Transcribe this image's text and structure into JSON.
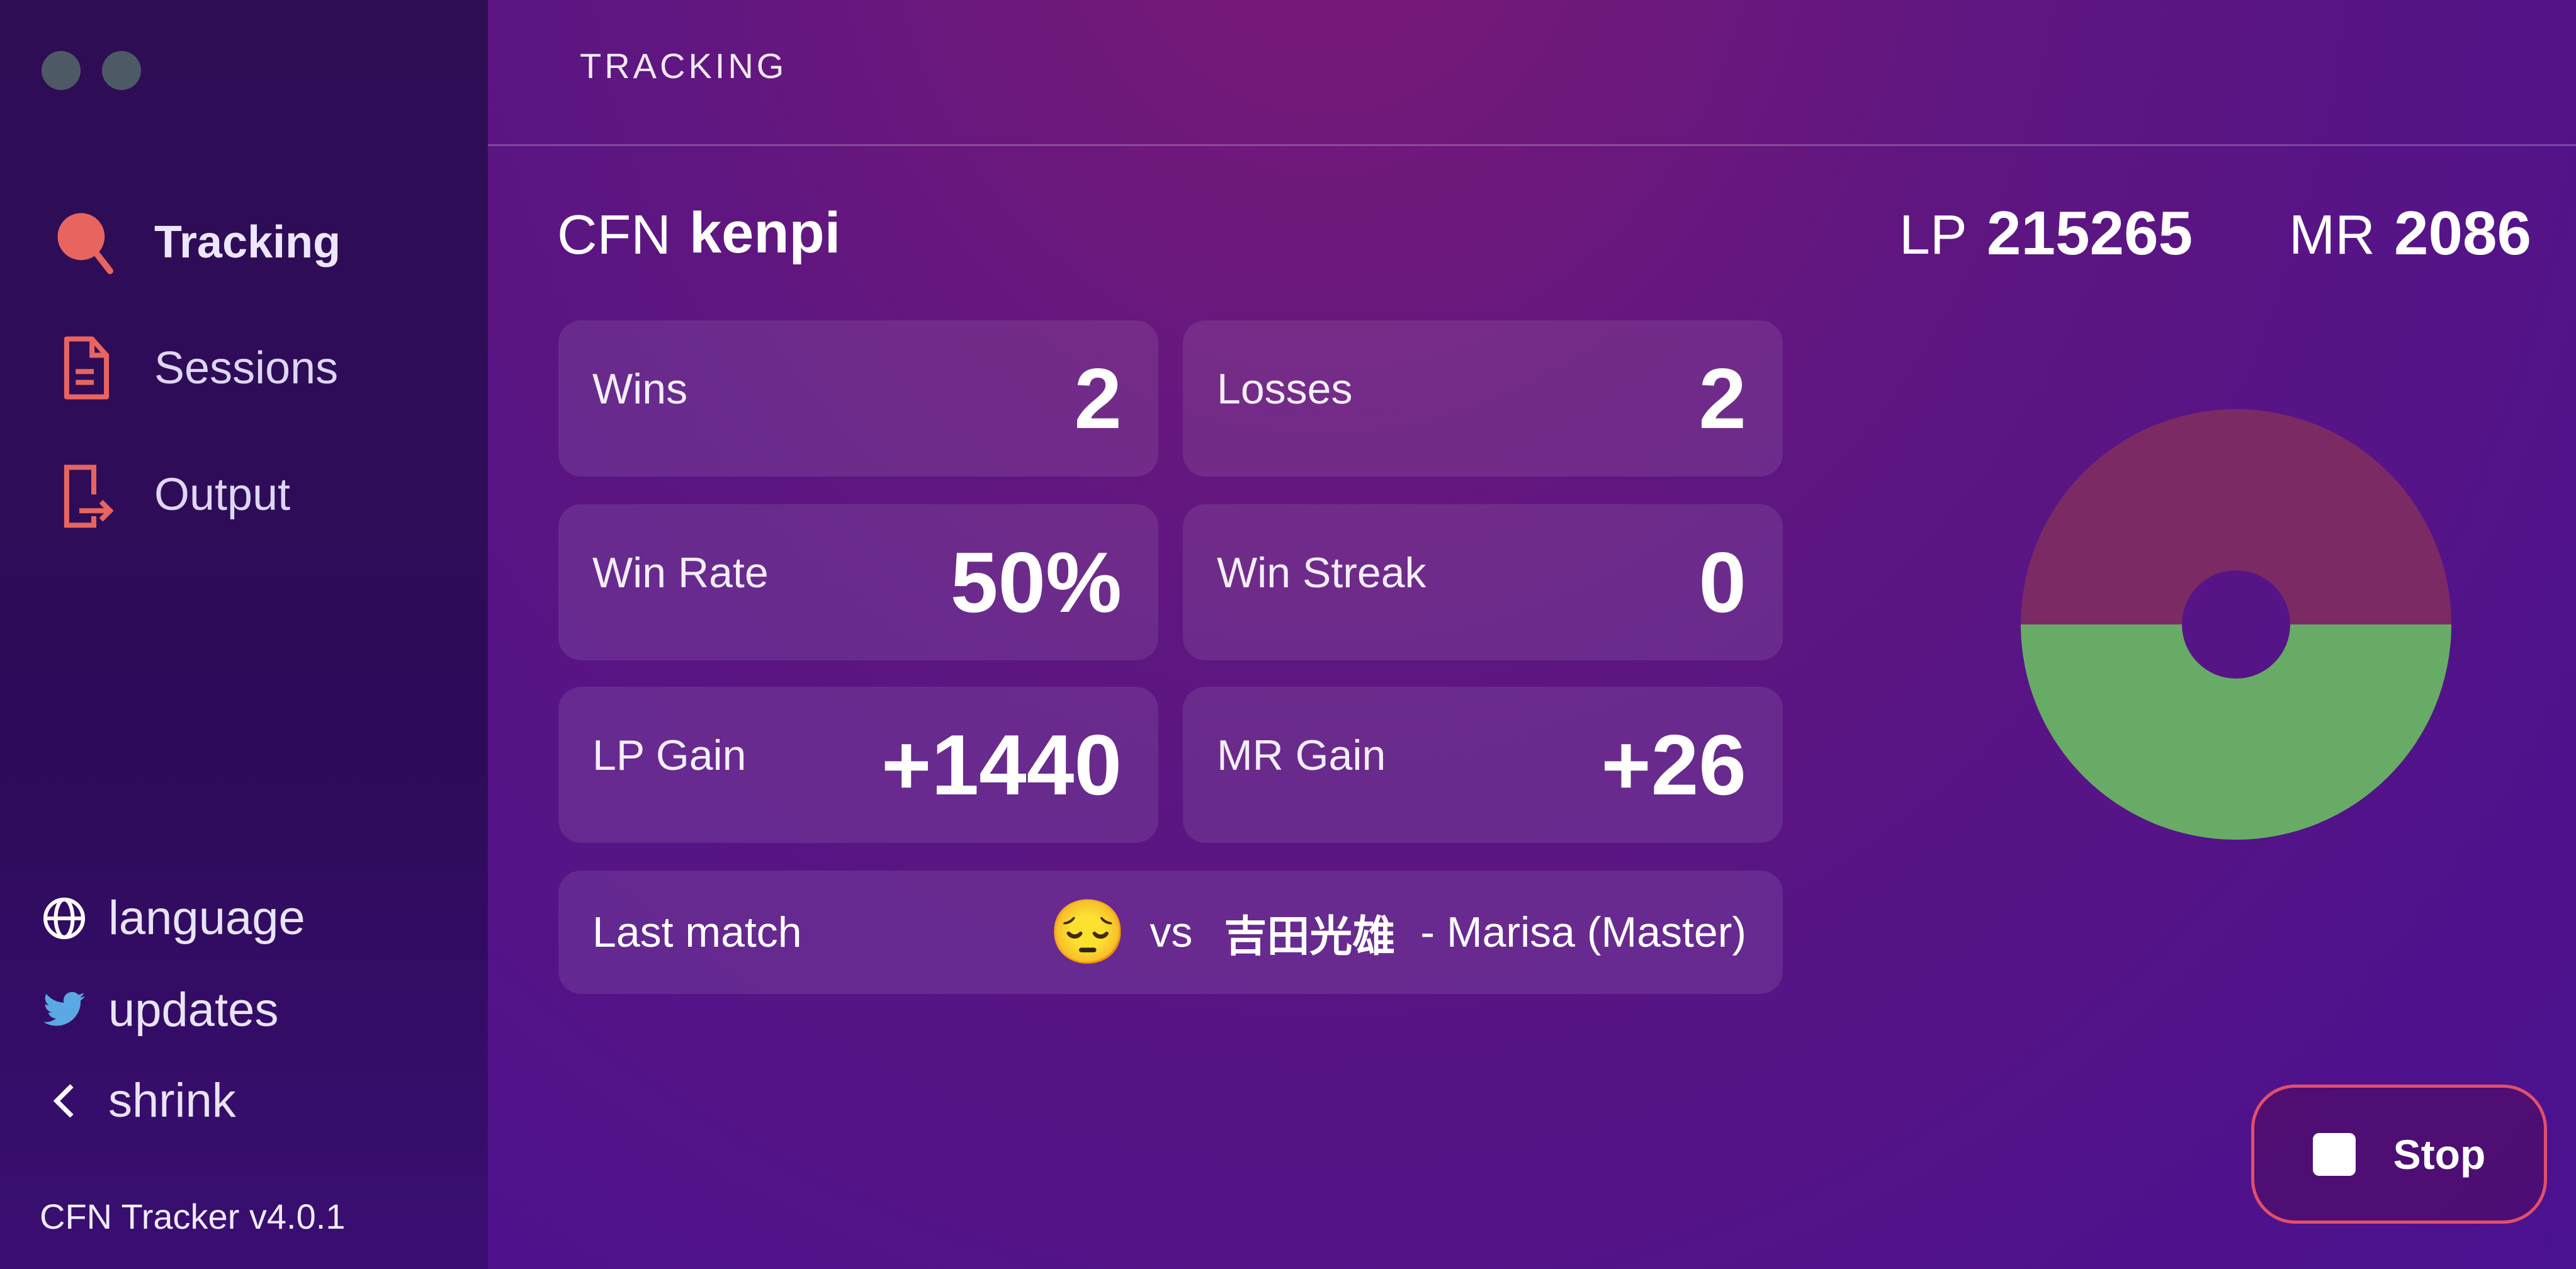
{
  "sidebar": {
    "nav": [
      {
        "label": "Tracking",
        "icon": "search-icon",
        "active": true
      },
      {
        "label": "Sessions",
        "icon": "document-icon"
      },
      {
        "label": "Output",
        "icon": "export-icon"
      }
    ],
    "footer": [
      {
        "label": "language",
        "icon": "globe-icon"
      },
      {
        "label": "updates",
        "icon": "twitter-icon"
      },
      {
        "label": "shrink",
        "icon": "chevron-left-icon"
      }
    ],
    "version": "CFN Tracker v4.0.1"
  },
  "header": {
    "title": "TRACKING"
  },
  "player": {
    "cfn_label": "CFN",
    "cfn": "kenpi",
    "lp_label": "LP",
    "lp": "215265",
    "mr_label": "MR",
    "mr": "2086"
  },
  "stats": {
    "wins": {
      "label": "Wins",
      "value": "2"
    },
    "losses": {
      "label": "Losses",
      "value": "2"
    },
    "win_rate": {
      "label": "Win Rate",
      "value": "50%"
    },
    "win_streak": {
      "label": "Win Streak",
      "value": "0"
    },
    "lp_gain": {
      "label": "LP Gain",
      "value": "+1440"
    },
    "mr_gain": {
      "label": "MR Gain",
      "value": "+26"
    }
  },
  "last_match": {
    "label": "Last match",
    "emoji": "😔",
    "vs": "vs",
    "opponent": "吉田光雄",
    "detail": "- Marisa (Master)"
  },
  "donut": {
    "wins": 2,
    "losses": 2,
    "colors": {
      "wins": "#68ab66",
      "losses": "#7b2a64"
    }
  },
  "stop_label": "Stop",
  "colors": {
    "accent": "#e0506a"
  }
}
